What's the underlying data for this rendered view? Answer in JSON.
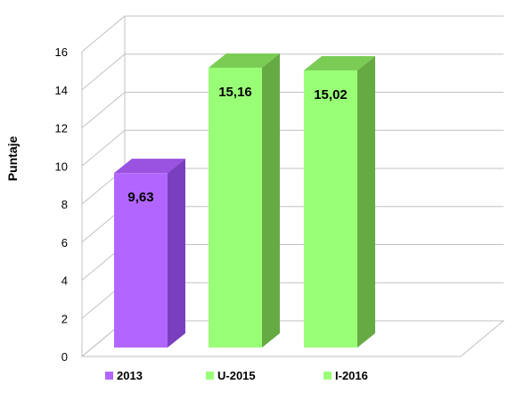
{
  "chart_data": {
    "type": "bar",
    "categories": [
      "2013",
      "U-2015",
      "I-2016"
    ],
    "values": [
      9.63,
      15.16,
      15.02
    ],
    "data_labels": [
      "9,63",
      "15,16",
      "15,02"
    ],
    "ylabel": "Puntaje",
    "ylim": [
      0,
      16
    ],
    "yticks": [
      0,
      2,
      4,
      6,
      8,
      10,
      12,
      14,
      16
    ],
    "grid": true,
    "style": "3d",
    "legend": "bottom",
    "colors": {
      "2013": {
        "front": "#b266ff",
        "side": "#7a3fbf",
        "top": "#9a52e0"
      },
      "U-2015": {
        "front": "#99ff77",
        "side": "#66aa44",
        "top": "#7acc55"
      },
      "I-2016": {
        "front": "#99ff77",
        "side": "#66aa44",
        "top": "#7acc55"
      }
    },
    "gridline_color": "#c0c0c0"
  }
}
